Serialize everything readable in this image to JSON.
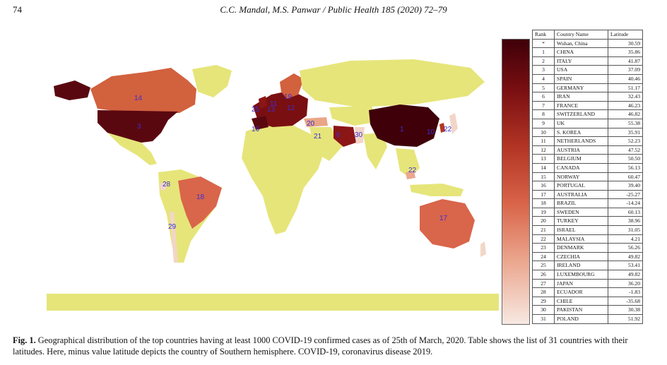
{
  "header": {
    "page_number": "74",
    "running_head": "C.C. Mandal, M.S. Panwar / Public Health 185 (2020) 72–79"
  },
  "figure": {
    "map_labels": [
      "14",
      "3",
      "11",
      "25",
      "16",
      "13",
      "19",
      "12",
      "20",
      "21",
      "6",
      "30",
      "1",
      "10",
      "22",
      "22",
      "28",
      "18",
      "29",
      "17"
    ],
    "colors": {
      "highest": "#3f0009",
      "high": "#8b1616",
      "mid": "#d2613e",
      "low": "#e9a585",
      "lowest": "#f7e9e2",
      "no_data": "#e6e57a",
      "label": "#3b2fd0"
    }
  },
  "table": {
    "headers": {
      "rank": "Rank",
      "country": "Country Name",
      "latitude": "Latitude"
    },
    "rows": [
      {
        "rank": "*",
        "country": "Wuhan, China",
        "latitude": "30.59"
      },
      {
        "rank": "1",
        "country": "CHINA",
        "latitude": "35.86"
      },
      {
        "rank": "2",
        "country": "ITALY",
        "latitude": "41.87"
      },
      {
        "rank": "3",
        "country": "USA",
        "latitude": "37.09"
      },
      {
        "rank": "4",
        "country": "SPAIN",
        "latitude": "40.46"
      },
      {
        "rank": "5",
        "country": "GERMANY",
        "latitude": "51.17"
      },
      {
        "rank": "6",
        "country": "IRAN",
        "latitude": "32.43"
      },
      {
        "rank": "7",
        "country": "FRANCE",
        "latitude": "46.23"
      },
      {
        "rank": "8",
        "country": "SWITZERLAND",
        "latitude": "46.82"
      },
      {
        "rank": "9",
        "country": "UK",
        "latitude": "55.38"
      },
      {
        "rank": "10",
        "country": "S. KOREA",
        "latitude": "35.91"
      },
      {
        "rank": "11",
        "country": "NETHERLANDS",
        "latitude": "52.23"
      },
      {
        "rank": "12",
        "country": "AUSTRIA",
        "latitude": "47.52"
      },
      {
        "rank": "13",
        "country": "BELGIUM",
        "latitude": "50.50"
      },
      {
        "rank": "14",
        "country": "CANADA",
        "latitude": "56.13"
      },
      {
        "rank": "15",
        "country": "NORWAY",
        "latitude": "60.47"
      },
      {
        "rank": "16",
        "country": "PORTUGAL",
        "latitude": "39.40"
      },
      {
        "rank": "17",
        "country": "AUSTRALIA",
        "latitude": "-25.27"
      },
      {
        "rank": "18",
        "country": "BRAZIL",
        "latitude": "-14.24"
      },
      {
        "rank": "19",
        "country": "SWEDEN",
        "latitude": "60.13"
      },
      {
        "rank": "20",
        "country": "TURKEY",
        "latitude": "38.96"
      },
      {
        "rank": "21",
        "country": "ISRAEL",
        "latitude": "31.05"
      },
      {
        "rank": "22",
        "country": "MALAYSIA",
        "latitude": "4.21"
      },
      {
        "rank": "23",
        "country": "DENMARK",
        "latitude": "56.26"
      },
      {
        "rank": "24",
        "country": "CZECHIA",
        "latitude": "49.82"
      },
      {
        "rank": "25",
        "country": "IRELAND",
        "latitude": "53.41"
      },
      {
        "rank": "26",
        "country": "LUXEMBOURG",
        "latitude": "49.82"
      },
      {
        "rank": "27",
        "country": "JAPAN",
        "latitude": "36.20"
      },
      {
        "rank": "28",
        "country": "ECUADOR",
        "latitude": "-1.83"
      },
      {
        "rank": "29",
        "country": "CHILE",
        "latitude": "-35.68"
      },
      {
        "rank": "30",
        "country": "PAKISTAN",
        "latitude": "30.38"
      },
      {
        "rank": "31",
        "country": "POLAND",
        "latitude": "51.92"
      }
    ]
  },
  "caption": {
    "label": "Fig. 1.",
    "text": " Geographical distribution of the top countries having at least 1000 COVID-19 confirmed cases as of 25th of March, 2020. Table shows the list of 31 countries with their latitudes. Here, minus value latitude depicts the country of Southern hemisphere. COVID-19, coronavirus disease 2019."
  }
}
